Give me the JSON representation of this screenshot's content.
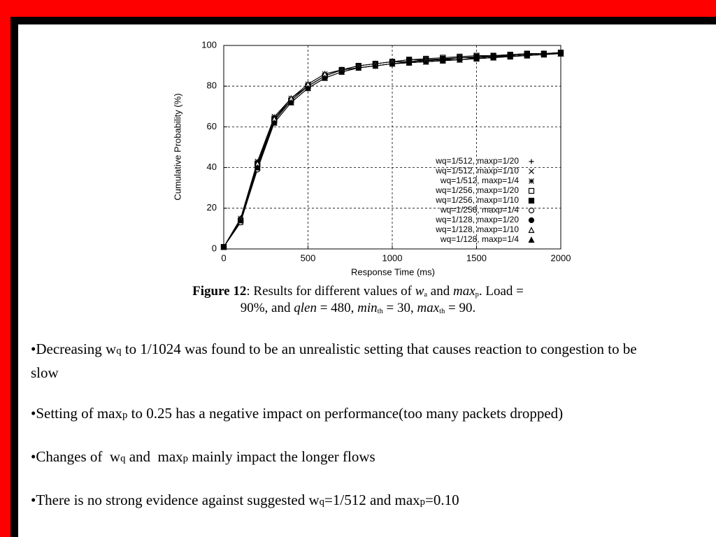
{
  "chart_data": {
    "type": "line",
    "xlabel": "Response Time (ms)",
    "ylabel": "Cumulative Probability (%)",
    "x": [
      0,
      100,
      200,
      300,
      400,
      500,
      600,
      700,
      800,
      900,
      1000,
      1100,
      1200,
      1300,
      1400,
      1500,
      1600,
      1700,
      1800,
      1900,
      2000
    ],
    "xlim": [
      0,
      2000
    ],
    "xticks": [
      0,
      500,
      1000,
      1500,
      2000
    ],
    "ylim": [
      0,
      100
    ],
    "yticks": [
      0,
      20,
      40,
      60,
      80,
      100
    ],
    "grid": true,
    "legend": "lower right",
    "series": [
      {
        "name": "wq=1/512, maxp=1/20",
        "color": "#000000",
        "marker": "plus",
        "values": [
          1,
          14,
          42,
          64,
          74,
          80,
          85,
          88,
          89,
          90,
          91,
          91.5,
          92,
          92.5,
          93,
          93.5,
          94,
          94.5,
          95,
          95.5,
          96
        ]
      },
      {
        "name": "wq=1/512, maxp=1/10",
        "color": "#000000",
        "marker": "cross",
        "values": [
          1,
          13,
          40,
          62,
          72,
          79,
          84,
          87,
          89,
          90,
          91,
          92,
          92.5,
          93,
          93,
          93.5,
          94,
          95,
          95.5,
          96,
          96
        ]
      },
      {
        "name": "wq=1/512, maxp=1/4",
        "color": "#000000",
        "marker": "star",
        "values": [
          1,
          15,
          43,
          65,
          74,
          81,
          86,
          88,
          90,
          91,
          92,
          92,
          93,
          93,
          94,
          94,
          95,
          95,
          95.5,
          96,
          96
        ]
      },
      {
        "name": "wq=1/256, maxp=1/20",
        "color": "#000000",
        "marker": "square-open",
        "values": [
          1,
          14,
          41,
          63,
          73,
          80,
          85,
          88,
          90,
          91,
          92,
          93,
          93.5,
          94,
          94.5,
          95,
          95,
          95.5,
          96,
          96,
          96.5
        ]
      },
      {
        "name": "wq=1/256, maxp=1/10",
        "color": "#000000",
        "marker": "square",
        "values": [
          1,
          14,
          42,
          64,
          73,
          80,
          85,
          88,
          90,
          91,
          92,
          93,
          93,
          93.5,
          94,
          94.5,
          95,
          95.5,
          96,
          96,
          96.5
        ]
      },
      {
        "name": "wq=1/256, maxp=1/4",
        "color": "#000000",
        "marker": "circle-open",
        "values": [
          1,
          13,
          39,
          62,
          72,
          79,
          84,
          87,
          89,
          90,
          91,
          91.5,
          92,
          92.5,
          93,
          93.5,
          94,
          95,
          95.5,
          96,
          96
        ]
      },
      {
        "name": "wq=1/128, maxp=1/20",
        "color": "#000000",
        "marker": "circle",
        "values": [
          1,
          14,
          41,
          63,
          73,
          80,
          85,
          88,
          89,
          90,
          91,
          92,
          92.5,
          93,
          93,
          94,
          94.5,
          95,
          95.5,
          96,
          96
        ]
      },
      {
        "name": "wq=1/128, maxp=1/10",
        "color": "#000000",
        "marker": "triangle-open",
        "values": [
          1,
          15,
          42,
          64,
          74,
          81,
          86,
          88,
          90,
          91,
          92,
          92,
          93,
          93,
          94,
          94,
          94.5,
          95,
          95.5,
          96,
          96
        ]
      },
      {
        "name": "wq=1/128, maxp=1/4",
        "color": "#000000",
        "marker": "triangle",
        "values": [
          1,
          14,
          40,
          62,
          72,
          79,
          84,
          87,
          89,
          90,
          91,
          91.5,
          92,
          92.5,
          93,
          93.5,
          94,
          94.5,
          95,
          95.5,
          96
        ]
      }
    ]
  },
  "caption": [
    "Figure 12",
    ": Results for different values of ",
    "w",
    "a",
    " and ",
    "max",
    "p",
    ". Load =",
    "90%, and ",
    "qlen",
    " = 480, ",
    "min",
    "th",
    " = 30, ",
    "max",
    "th",
    " = 90."
  ],
  "bullets": [
    [
      "•Decreasing w",
      "q",
      " to 1/1024 was found to be an unrealistic setting that causes reaction to congestion to be slow"
    ],
    [
      "•Setting of max",
      "p",
      " to 0.25 has a negative impact on performance(too many packets dropped)"
    ],
    [
      "•Changes of  w",
      "q",
      " and  max",
      "p",
      " mainly impact the longer flows"
    ],
    [
      "•There is no strong evidence against suggested w",
      "q",
      "=1/512 and max",
      "p",
      "=0.10"
    ]
  ]
}
